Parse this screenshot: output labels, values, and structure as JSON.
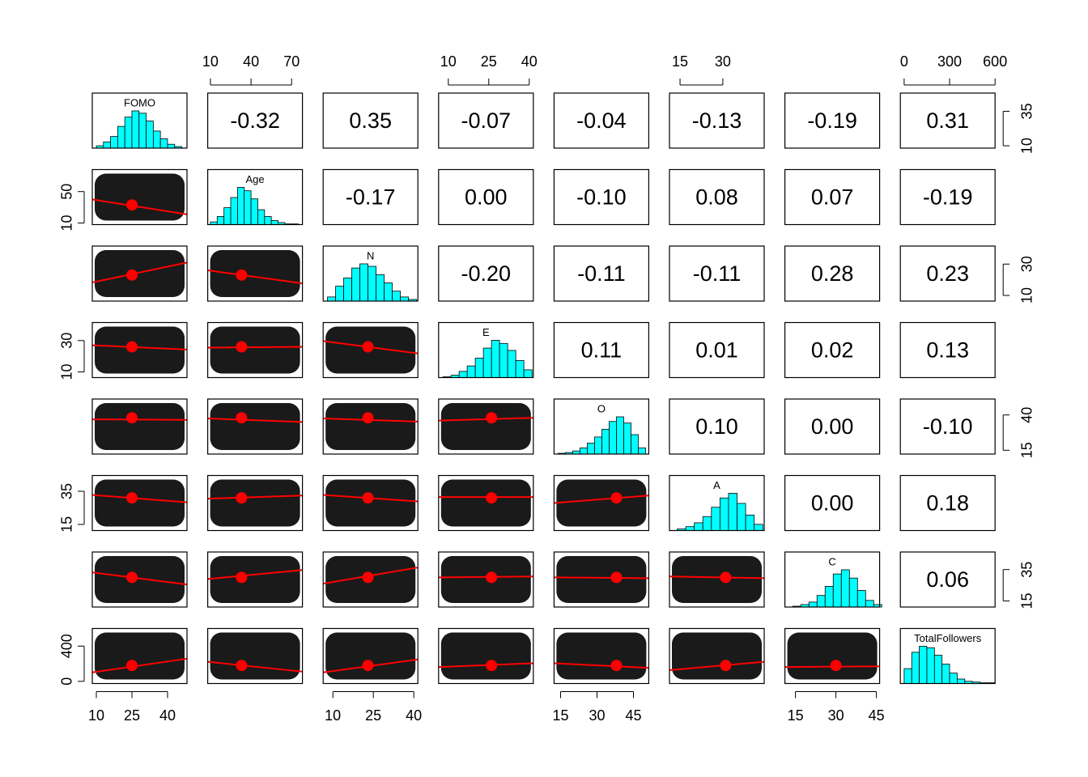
{
  "chart_data": {
    "type": "pairs",
    "variables": [
      {
        "name": "FOMO",
        "lim": [
          8.3,
          48.2
        ],
        "ticks": [
          10,
          25,
          40
        ],
        "mean": 25,
        "bins": [
          10,
          13,
          16,
          19,
          22,
          25,
          28,
          31,
          34,
          37,
          40,
          43,
          46
        ],
        "counts": [
          3,
          8,
          15,
          28,
          40,
          48,
          45,
          35,
          22,
          12,
          5,
          2
        ]
      },
      {
        "name": "Age",
        "lim": [
          8,
          78
        ],
        "ticks": [
          10,
          40,
          70
        ],
        "mean": 33,
        "bins": [
          10,
          15,
          20,
          25,
          30,
          35,
          40,
          45,
          50,
          55,
          60,
          65,
          70,
          75,
          80
        ],
        "counts": [
          4,
          12,
          25,
          40,
          55,
          50,
          38,
          22,
          12,
          6,
          3,
          1,
          1,
          0
        ]
      },
      {
        "name": "N",
        "lim": [
          6.4,
          41.5
        ],
        "ticks": [
          10,
          25,
          40
        ],
        "mean": 23,
        "bins": [
          8,
          11,
          14,
          17,
          20,
          23,
          26,
          29,
          32,
          35,
          38,
          41
        ],
        "counts": [
          5,
          18,
          28,
          40,
          45,
          42,
          32,
          22,
          12,
          5,
          2
        ]
      },
      {
        "name": "E",
        "lim": [
          6.4,
          41.5
        ],
        "ticks": [
          10,
          25,
          40
        ],
        "mean": 26,
        "bins": [
          8,
          11,
          14,
          17,
          20,
          23,
          26,
          29,
          32,
          35,
          38,
          41
        ],
        "counts": [
          1,
          3,
          8,
          15,
          25,
          38,
          48,
          44,
          35,
          22,
          10
        ]
      },
      {
        "name": "O",
        "lim": [
          12.3,
          51.3
        ],
        "ticks": [
          15,
          30,
          45
        ],
        "mean": 38,
        "bins": [
          14,
          17,
          20,
          23,
          26,
          29,
          32,
          35,
          38,
          41,
          44,
          47,
          50
        ],
        "counts": [
          1,
          2,
          4,
          8,
          14,
          22,
          32,
          42,
          48,
          40,
          25,
          8
        ]
      },
      {
        "name": "A",
        "lim": [
          11.3,
          44.5
        ],
        "ticks": [
          15,
          30
        ],
        "mean": 31,
        "bins": [
          14,
          17,
          20,
          23,
          26,
          29,
          32,
          35,
          38,
          41,
          44
        ],
        "counts": [
          2,
          5,
          10,
          18,
          30,
          42,
          48,
          35,
          20,
          8
        ]
      },
      {
        "name": "C",
        "lim": [
          11.1,
          46.2
        ],
        "ticks": [
          15,
          30,
          45
        ],
        "mean": 30,
        "bins": [
          14,
          17,
          20,
          23,
          26,
          29,
          32,
          35,
          38,
          41,
          44,
          47
        ],
        "counts": [
          1,
          3,
          6,
          14,
          25,
          40,
          45,
          35,
          20,
          8,
          3
        ]
      },
      {
        "name": "TotalFollowers",
        "lim": [
          -25,
          600
        ],
        "ticks": [
          0,
          300,
          600
        ],
        "mean": 180,
        "bins": [
          0,
          50,
          100,
          150,
          200,
          250,
          300,
          350,
          400,
          450,
          500,
          550,
          600
        ],
        "counts": [
          20,
          42,
          50,
          48,
          38,
          26,
          14,
          6,
          3,
          2,
          1,
          1
        ]
      }
    ],
    "side_ticks": {
      "top": [
        {
          "var": 1,
          "ticks": [
            10,
            40,
            70
          ]
        },
        {
          "var": 3,
          "ticks": [
            10,
            25,
            40
          ]
        },
        {
          "var": 5,
          "ticks": [
            15,
            30
          ]
        },
        {
          "var": 7,
          "ticks": [
            0,
            300,
            600
          ]
        }
      ],
      "bottom": [
        {
          "var": 0,
          "ticks": [
            10,
            25,
            40
          ]
        },
        {
          "var": 2,
          "ticks": [
            10,
            25,
            40
          ]
        },
        {
          "var": 4,
          "ticks": [
            15,
            30,
            45
          ]
        },
        {
          "var": 6,
          "ticks": [
            15,
            30,
            45
          ]
        }
      ],
      "left": [
        {
          "var": 1,
          "ticks": [
            10,
            50
          ]
        },
        {
          "var": 3,
          "ticks": [
            10,
            30
          ]
        },
        {
          "var": 5,
          "ticks": [
            15,
            35
          ]
        },
        {
          "var": 7,
          "ticks": [
            0,
            400
          ]
        }
      ],
      "right": [
        {
          "var": 0,
          "ticks": [
            10,
            35
          ]
        },
        {
          "var": 2,
          "ticks": [
            10,
            30
          ]
        },
        {
          "var": 4,
          "ticks": [
            15,
            40
          ]
        },
        {
          "var": 6,
          "ticks": [
            15,
            35
          ]
        }
      ]
    },
    "correlations": {
      "values": [
        [
          -0.32,
          0.35,
          -0.07,
          -0.04,
          -0.13,
          -0.19,
          0.31
        ],
        [
          -0.17,
          0,
          -0.1,
          0.08,
          0.07,
          -0.19
        ],
        [
          -0.2,
          -0.11,
          -0.11,
          0.28,
          0.23
        ],
        [
          0.11,
          0.01,
          0.02,
          0.13
        ],
        [
          0.1,
          0,
          -0.1
        ],
        [
          0,
          0.18
        ],
        [
          0.06
        ]
      ],
      "value_labels": [
        [
          "-0.32",
          "0.35",
          "-0.07",
          "-0.04",
          "-0.13",
          "-0.19",
          "0.31"
        ],
        [
          "-0.17",
          "0.00",
          "-0.10",
          "0.08",
          "0.07",
          "-0.19"
        ],
        [
          "-0.20",
          "-0.11",
          "-0.11",
          "0.28",
          "0.23"
        ],
        [
          "0.11",
          "0.01",
          "0.02",
          "0.13"
        ],
        [
          "0.10",
          "0.00",
          "-0.10"
        ],
        [
          "0.00",
          "0.18"
        ],
        [
          "0.06"
        ]
      ]
    },
    "smooth": [
      [
        [
          40,
          21
        ]
      ],
      [
        [
          18.3,
          31
        ],
        [
          26,
          17.7
        ]
      ],
      [
        [
          27,
          24.3
        ],
        [
          25.5,
          26
        ],
        [
          29.7,
          21.8
        ]
      ],
      [
        [
          36.9,
          36.5
        ],
        [
          37.5,
          35
        ],
        [
          37.5,
          35.3
        ],
        [
          36,
          38
        ]
      ],
      [
        [
          32.8,
          28.3
        ],
        [
          30.5,
          32.4
        ],
        [
          32.8,
          28.9
        ],
        [
          31.5,
          31.5
        ],
        [
          27.9,
          32.4
        ]
      ],
      [
        [
          33.2,
          25.5
        ],
        [
          29,
          34.7
        ],
        [
          26,
          36.3
        ],
        [
          30,
          30.6
        ],
        [
          30,
          29.5
        ],
        [
          30.6,
          29.5
        ]
      ],
      [
        [
          101,
          257
        ],
        [
          222,
          110
        ],
        [
          101,
          248
        ],
        [
          162,
          205
        ],
        [
          205,
          153
        ],
        [
          127,
          222
        ],
        [
          162,
          170
        ]
      ]
    ],
    "hist_color": "#00ffff",
    "fit_color": "#ff0000",
    "point_color": "#1a1a1a"
  }
}
